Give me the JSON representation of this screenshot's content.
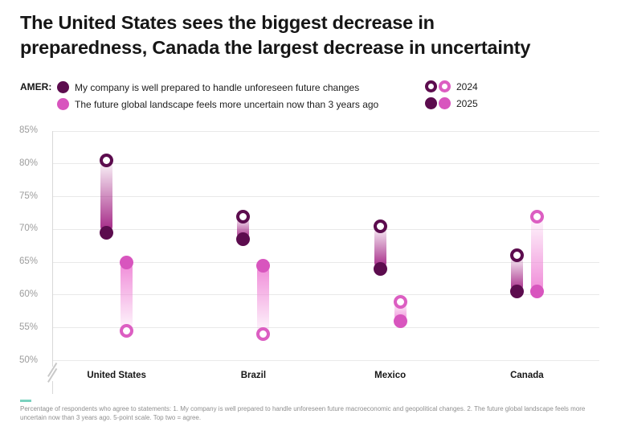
{
  "title_lines": [
    "The United States sees the biggest decrease in",
    "preparedness, Canada the largest decrease in uncertainty"
  ],
  "legend": {
    "region_label": "AMER:",
    "series": [
      {
        "label": "My company is well prepared to handle unforeseen future changes",
        "color": "#5c0c4e"
      },
      {
        "label": "The future global landscape feels more uncertain now than 3 years ago",
        "color": "#d855be"
      }
    ],
    "years": [
      {
        "label": "2024",
        "style": "hollow"
      },
      {
        "label": "2025",
        "style": "filled"
      }
    ]
  },
  "colors": {
    "series": [
      {
        "dot": "#5c0c4e",
        "ring": "#5c0c4e",
        "bar_strong": "#a32384",
        "bar_faint": "rgba(163,35,132,0.04)"
      },
      {
        "dot": "#d855be",
        "ring": "#dc5ec2",
        "bar_strong": "#f08bd8",
        "bar_faint": "rgba(240,139,216,0.05)"
      }
    ],
    "gridline": "#e9e9e9",
    "axis": "#d8d8d8",
    "tick_text": "#9c9c9c",
    "accent_teal": "#7ad2bf"
  },
  "chart_data": {
    "type": "scatter",
    "variant": "dumbbell-range",
    "title": "The United States sees the biggest decrease in preparedness, Canada the largest decrease in uncertainty",
    "region": "AMER",
    "categories": [
      "United States",
      "Brazil",
      "Mexico",
      "Canada"
    ],
    "years": [
      "2024",
      "2025"
    ],
    "series": [
      {
        "name": "My company is well prepared to handle unforeseen future changes",
        "values_2024": [
          80.5,
          72,
          70.5,
          66
        ],
        "values_2025": [
          69.5,
          68.5,
          64,
          60.5
        ]
      },
      {
        "name": "The future global landscape feels more uncertain now than 3 years ago",
        "values_2024": [
          54.5,
          54,
          59,
          72
        ],
        "values_2025": [
          65,
          64.5,
          56,
          60.5
        ]
      }
    ],
    "ylim": [
      50,
      85
    ],
    "yticks": [
      85,
      80,
      75,
      70,
      65,
      60,
      55,
      50
    ],
    "ytick_suffix": "%",
    "grid": true,
    "axis_break_bottom": true,
    "legend_position": "top"
  },
  "footer": {
    "note": "Percentage of respondents who agree to statements: 1. My company is well prepared to handle unforeseen future macroeconomic and geopolitical changes. 2. The future global landscape feels more uncertain now than 3 years ago. 5-point scale. Top two = agree."
  }
}
